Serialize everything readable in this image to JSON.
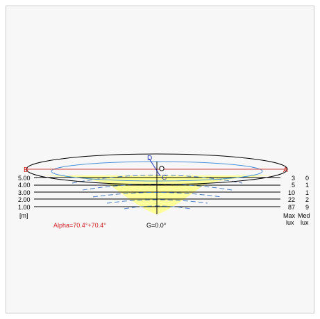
{
  "labels": {
    "point_b": "B",
    "point_a": "A",
    "point_d": "D",
    "point_o": "O",
    "point_c": "C",
    "unit": "[m]",
    "alpha": "Alpha=70.4°+70.4°",
    "gamma": "G=0.0°",
    "max_header_1": "Max",
    "max_header_2": "lux",
    "med_header_1": "Med",
    "med_header_2": "lux"
  },
  "rows": [
    {
      "height": "5.00",
      "max": "3",
      "med": "0"
    },
    {
      "height": "4.00",
      "max": "5",
      "med": "1"
    },
    {
      "height": "3.00",
      "max": "10",
      "med": "1"
    },
    {
      "height": "2.00",
      "max": "22",
      "med": "2"
    },
    {
      "height": "1.00",
      "max": "87",
      "med": "9"
    }
  ],
  "colors": {
    "cone_fill": "#ffff99",
    "outer_ellipse": "#000000",
    "inner_ellipse": "#4a90d9",
    "axis_line": "#d04040",
    "contour": "#4a7abf",
    "label_red": "#d02020",
    "label_blue": "#2233bb"
  }
}
